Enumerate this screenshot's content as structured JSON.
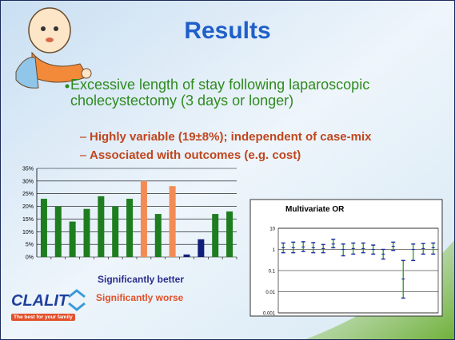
{
  "slide": {
    "title": "Results",
    "bullet": "Excessive length of stay following laparoscopic cholecystectomy (3 days or longer)",
    "sub_bullets": [
      "Highly variable (19±8%); independent of case-mix",
      "Associated with outcomes (e.g. cost)"
    ],
    "logo": {
      "name": "CLALIT",
      "tagline": "The best for your family"
    }
  },
  "chart_data": [
    {
      "type": "bar",
      "categories": [
        null,
        null,
        null,
        null,
        null,
        null,
        null,
        null,
        null,
        null,
        null,
        null,
        null,
        null
      ],
      "values": [
        23,
        20,
        14,
        19,
        24,
        20,
        23,
        30,
        17,
        28,
        1,
        7,
        17,
        18
      ],
      "colors": [
        "#1e7d1e",
        "#1e7d1e",
        "#1e7d1e",
        "#1e7d1e",
        "#1e7d1e",
        "#1e7d1e",
        "#1e7d1e",
        "#f28c54",
        "#1e7d1e",
        "#f28c54",
        "#0f1f7a",
        "#0f1f7a",
        "#1e7d1e",
        "#1e7d1e"
      ],
      "ylim": [
        0,
        35
      ],
      "yticks": [
        {
          "value": 0,
          "label": "0%"
        },
        {
          "value": 5,
          "label": "5%"
        },
        {
          "value": 10,
          "label": "10%"
        },
        {
          "value": 15,
          "label": "15%"
        },
        {
          "value": 20,
          "label": "20%"
        },
        {
          "value": 25,
          "label": "25%"
        },
        {
          "value": 30,
          "label": "30%"
        },
        {
          "value": 35,
          "label": "35%"
        }
      ],
      "grid": true,
      "legend": [
        {
          "name": "Significantly better",
          "color": "#2a2d8c"
        },
        {
          "name": "Significantly worse",
          "color": "#e2502a"
        }
      ]
    },
    {
      "type": "errorbar",
      "title": "Multivariate OR",
      "categories": [
        null,
        null,
        null,
        null,
        null,
        null,
        null,
        null,
        null,
        null,
        null,
        null,
        null,
        null,
        null,
        null
      ],
      "values": [
        1.2,
        1.2,
        1.3,
        1.2,
        1.1,
        1.8,
        1.0,
        1.1,
        1.1,
        1.0,
        0.6,
        1.4,
        0.04,
        1.0,
        1.1,
        1.2
      ],
      "lower": [
        0.7,
        0.7,
        0.8,
        0.7,
        0.7,
        1.2,
        0.5,
        0.6,
        0.7,
        0.6,
        0.35,
        0.9,
        0.005,
        0.3,
        0.6,
        0.6
      ],
      "upper": [
        2.0,
        2.2,
        2.3,
        2.1,
        1.7,
        3.0,
        1.8,
        2.0,
        2.0,
        1.6,
        1.0,
        2.2,
        0.3,
        1.8,
        1.9,
        2.0
      ],
      "color": "#1f2fa8",
      "whisker_color": "#2e9a1e",
      "log_scale": true,
      "ylim": [
        0.001,
        10
      ],
      "yticks": [
        0.001,
        0.01,
        0.1,
        1,
        10
      ],
      "grid": true
    }
  ]
}
